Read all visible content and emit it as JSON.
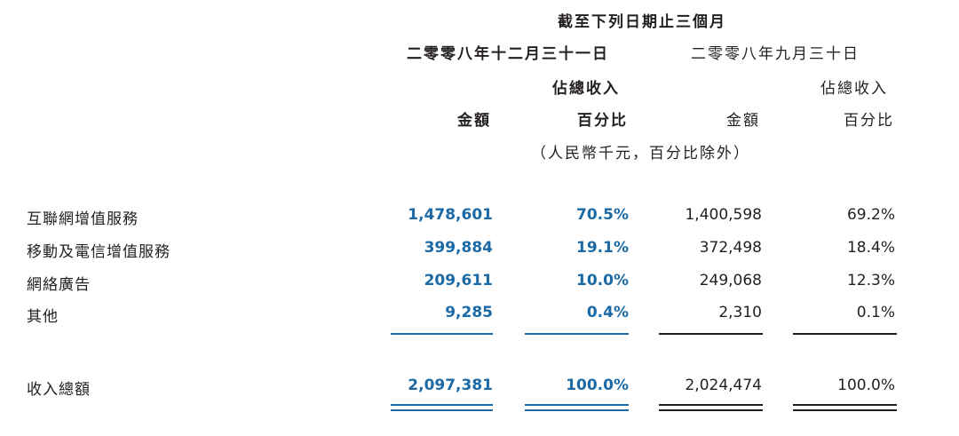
{
  "header": {
    "period": "截至下列日期止三個月",
    "date_current": "二零零八年十二月三十一日",
    "date_prior": "二零零八年九月三十日",
    "pct_caption_current": "佔總收入",
    "pct_caption_prior": "佔總收入",
    "amount_current": "金額",
    "pct_current": "百分比",
    "amount_prior": "金額",
    "pct_prior": "百分比",
    "unit_note": "（人民幣千元，百分比除外）"
  },
  "rows": [
    {
      "label": "互聯網增值服務",
      "amount_current": "1,478,601",
      "pct_current": "70.5%",
      "amount_prior": "1,400,598",
      "pct_prior": "69.2%"
    },
    {
      "label": "移動及電信增值服務",
      "amount_current": "399,884",
      "pct_current": "19.1%",
      "amount_prior": "372,498",
      "pct_prior": "18.4%"
    },
    {
      "label": "網絡廣告",
      "amount_current": "209,611",
      "pct_current": "10.0%",
      "amount_prior": "249,068",
      "pct_prior": "12.3%"
    },
    {
      "label": "其他",
      "amount_current": "9,285",
      "pct_current": "0.4%",
      "amount_prior": "2,310",
      "pct_prior": "0.1%"
    }
  ],
  "total": {
    "label": "收入總額",
    "amount_current": "2,097,381",
    "pct_current": "100.0%",
    "amount_prior": "2,024,474",
    "pct_prior": "100.0%"
  },
  "colors": {
    "current_period": "#1b6aa5",
    "prior_period": "#231f20"
  }
}
